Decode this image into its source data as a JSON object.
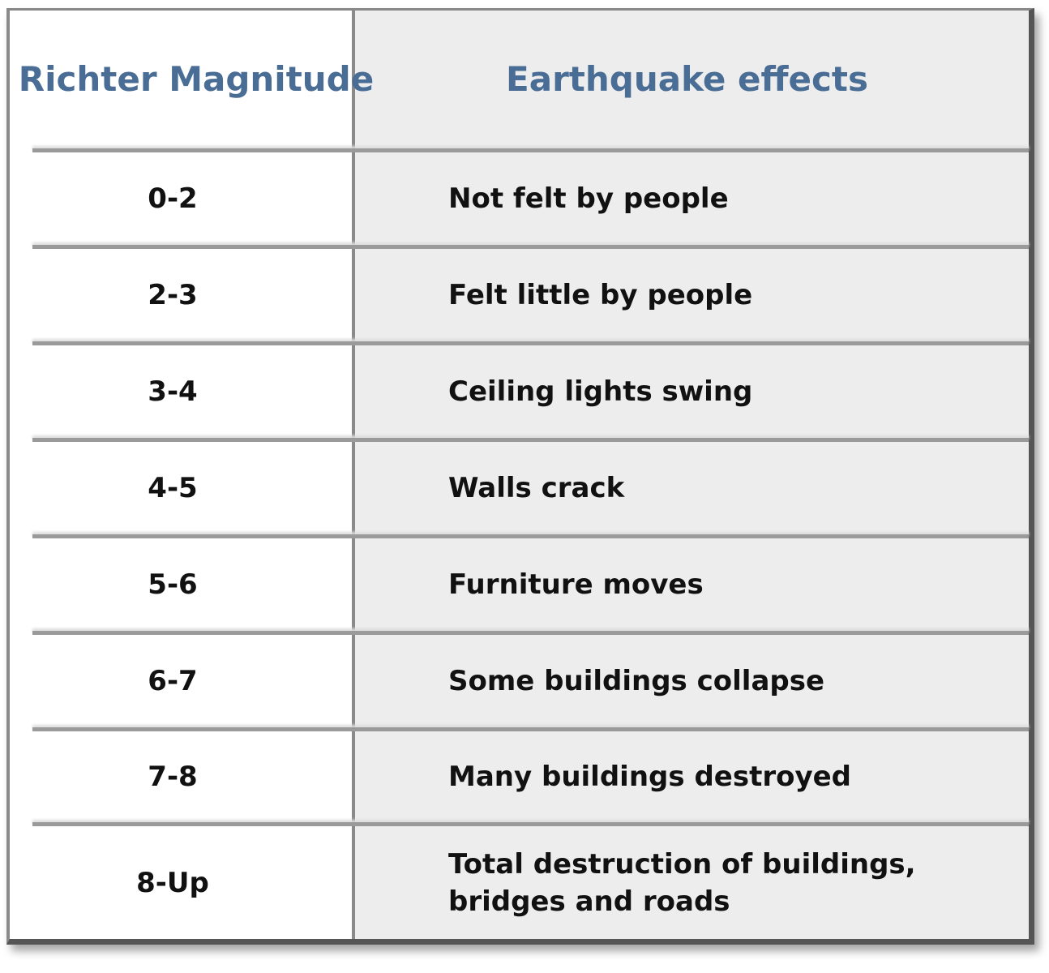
{
  "header": {
    "magnitude": "Richter Magnitude",
    "effects": "Earthquake effects"
  },
  "colors": {
    "header_text": "#4a6d96",
    "right_column_bg": "#ededed",
    "body_text": "#111111"
  },
  "rows": [
    {
      "magnitude": "0-2",
      "effect": "Not felt by people"
    },
    {
      "magnitude": "2-3",
      "effect": "Felt little by people"
    },
    {
      "magnitude": "3-4",
      "effect": "Ceiling lights swing"
    },
    {
      "magnitude": "4-5",
      "effect": "Walls crack"
    },
    {
      "magnitude": "5-6",
      "effect": "Furniture moves"
    },
    {
      "magnitude": "6-7",
      "effect": "Some buildings collapse"
    },
    {
      "magnitude": "7-8",
      "effect": "Many buildings destroyed"
    },
    {
      "magnitude": "8-Up",
      "effect": "Total destruction of buildings, bridges and roads"
    }
  ]
}
